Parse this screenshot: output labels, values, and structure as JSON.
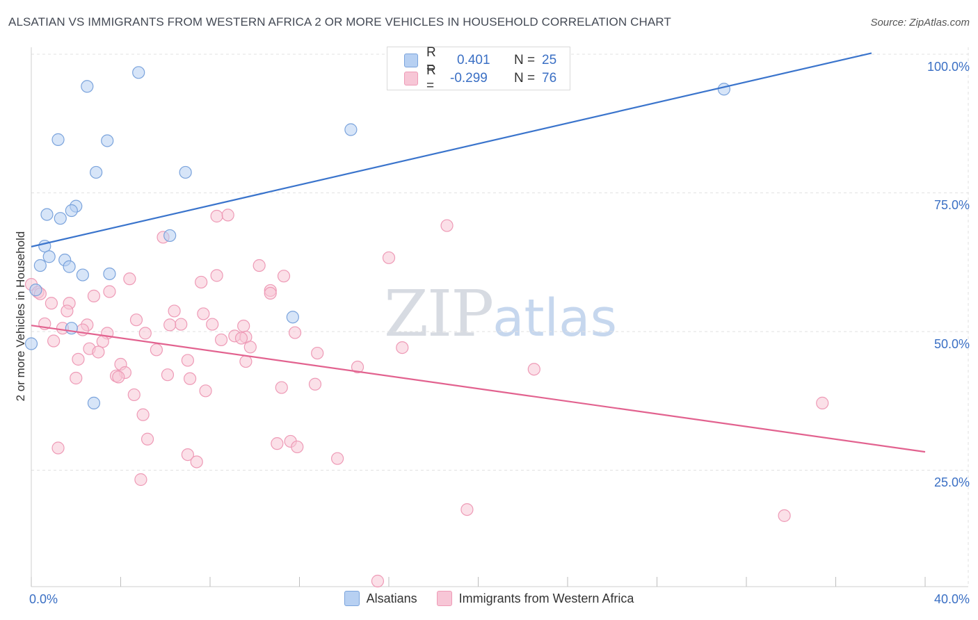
{
  "header": {
    "title": "ALSATIAN VS IMMIGRANTS FROM WESTERN AFRICA 2 OR MORE VEHICLES IN HOUSEHOLD CORRELATION CHART",
    "source": "Source: ZipAtlas.com"
  },
  "watermark": {
    "zip": "ZIP",
    "atlas": "atlas"
  },
  "legend_top": {
    "rows": [
      {
        "r_label": "R =",
        "r_value": "0.401",
        "n_label": "N =",
        "n_value": "25"
      },
      {
        "r_label": "R =",
        "r_value": "-0.299",
        "n_label": "N =",
        "n_value": "76"
      }
    ]
  },
  "legend_bottom": {
    "series_a": "Alsatians",
    "series_b": "Immigrants from Western Africa"
  },
  "colors": {
    "blue_fill": "#b7d0f2",
    "blue_stroke": "#7aa3dc",
    "blue_line": "#3a74cc",
    "pink_fill": "#f7c6d6",
    "pink_stroke": "#ee9ab6",
    "pink_line": "#e2628f",
    "grid": "#e1e1e1",
    "tick_text": "#3a6fc4"
  },
  "chart_data": {
    "type": "scatter",
    "title": "ALSATIAN VS IMMIGRANTS FROM WESTERN AFRICA 2 OR MORE VEHICLES IN HOUSEHOLD CORRELATION CHART",
    "xlabel": "",
    "ylabel": "2 or more Vehicles in Household",
    "xlim": [
      0,
      40
    ],
    "ylim": [
      4,
      100
    ],
    "x_tick_labels": [
      "0.0%",
      "40.0%"
    ],
    "y_ticks": [
      {
        "value": 25,
        "label": "25.0%"
      },
      {
        "value": 50,
        "label": "50.0%"
      },
      {
        "value": 75,
        "label": "75.0%"
      },
      {
        "value": 100,
        "label": "100.0%"
      }
    ],
    "series": [
      {
        "name": "Alsatians",
        "r": 0.401,
        "n": 25,
        "trend": {
          "x0": 0,
          "y0": 65.3,
          "x1": 37.6,
          "y1": 100.2
        },
        "points": [
          [
            4.8,
            96.7
          ],
          [
            2.5,
            94.2
          ],
          [
            31.0,
            93.7
          ],
          [
            14.3,
            86.4
          ],
          [
            1.2,
            84.6
          ],
          [
            3.4,
            84.4
          ],
          [
            2.9,
            78.7
          ],
          [
            6.9,
            78.7
          ],
          [
            2.0,
            72.6
          ],
          [
            0.7,
            71.1
          ],
          [
            1.8,
            71.8
          ],
          [
            1.3,
            70.4
          ],
          [
            6.2,
            67.3
          ],
          [
            0.6,
            65.4
          ],
          [
            0.8,
            63.5
          ],
          [
            1.5,
            62.9
          ],
          [
            0.4,
            61.9
          ],
          [
            1.7,
            61.7
          ],
          [
            2.3,
            60.2
          ],
          [
            3.5,
            60.4
          ],
          [
            0.2,
            57.5
          ],
          [
            11.7,
            52.6
          ],
          [
            1.8,
            50.6
          ],
          [
            0.0,
            47.8
          ],
          [
            2.8,
            37.1
          ]
        ]
      },
      {
        "name": "Immigrants from Western Africa",
        "r": -0.299,
        "n": 76,
        "trend": {
          "x0": 0,
          "y0": 51.1,
          "x1": 40.0,
          "y1": 28.3
        },
        "points": [
          [
            0.0,
            58.5
          ],
          [
            0.3,
            57.1
          ],
          [
            0.4,
            56.8
          ],
          [
            8.3,
            70.8
          ],
          [
            8.8,
            71.0
          ],
          [
            18.6,
            69.1
          ],
          [
            5.9,
            67.0
          ],
          [
            16.0,
            63.3
          ],
          [
            10.2,
            61.9
          ],
          [
            8.3,
            60.1
          ],
          [
            11.3,
            60.0
          ],
          [
            4.4,
            59.5
          ],
          [
            7.6,
            58.9
          ],
          [
            10.7,
            57.4
          ],
          [
            10.7,
            56.9
          ],
          [
            3.5,
            57.2
          ],
          [
            2.8,
            56.4
          ],
          [
            0.9,
            55.1
          ],
          [
            1.7,
            55.1
          ],
          [
            1.6,
            53.7
          ],
          [
            6.4,
            53.7
          ],
          [
            7.7,
            53.2
          ],
          [
            4.7,
            52.1
          ],
          [
            0.6,
            51.4
          ],
          [
            6.7,
            51.3
          ],
          [
            6.2,
            51.2
          ],
          [
            8.1,
            51.3
          ],
          [
            2.5,
            51.2
          ],
          [
            9.5,
            51.0
          ],
          [
            1.4,
            50.6
          ],
          [
            2.3,
            50.3
          ],
          [
            5.1,
            49.7
          ],
          [
            3.4,
            49.7
          ],
          [
            11.8,
            49.8
          ],
          [
            9.1,
            49.2
          ],
          [
            9.6,
            49.0
          ],
          [
            9.4,
            48.8
          ],
          [
            8.5,
            48.5
          ],
          [
            3.2,
            48.2
          ],
          [
            1.0,
            48.3
          ],
          [
            9.8,
            47.2
          ],
          [
            2.6,
            46.9
          ],
          [
            5.6,
            46.7
          ],
          [
            3.0,
            46.3
          ],
          [
            16.6,
            47.1
          ],
          [
            12.8,
            46.1
          ],
          [
            2.1,
            45.0
          ],
          [
            7.0,
            44.8
          ],
          [
            4.0,
            44.1
          ],
          [
            9.6,
            44.6
          ],
          [
            14.6,
            43.6
          ],
          [
            22.5,
            43.2
          ],
          [
            4.2,
            42.6
          ],
          [
            3.8,
            42.0
          ],
          [
            6.1,
            42.2
          ],
          [
            3.9,
            41.8
          ],
          [
            2.0,
            41.6
          ],
          [
            7.1,
            41.5
          ],
          [
            12.7,
            40.5
          ],
          [
            11.2,
            39.9
          ],
          [
            7.8,
            39.3
          ],
          [
            4.6,
            38.6
          ],
          [
            35.4,
            37.1
          ],
          [
            5.0,
            35.0
          ],
          [
            5.2,
            30.6
          ],
          [
            11.6,
            30.2
          ],
          [
            11.0,
            29.8
          ],
          [
            11.9,
            29.2
          ],
          [
            1.2,
            29.0
          ],
          [
            7.0,
            27.8
          ],
          [
            7.4,
            26.5
          ],
          [
            13.7,
            27.1
          ],
          [
            4.9,
            23.3
          ],
          [
            19.5,
            17.9
          ],
          [
            33.7,
            16.8
          ],
          [
            15.5,
            5.0
          ]
        ]
      }
    ]
  }
}
